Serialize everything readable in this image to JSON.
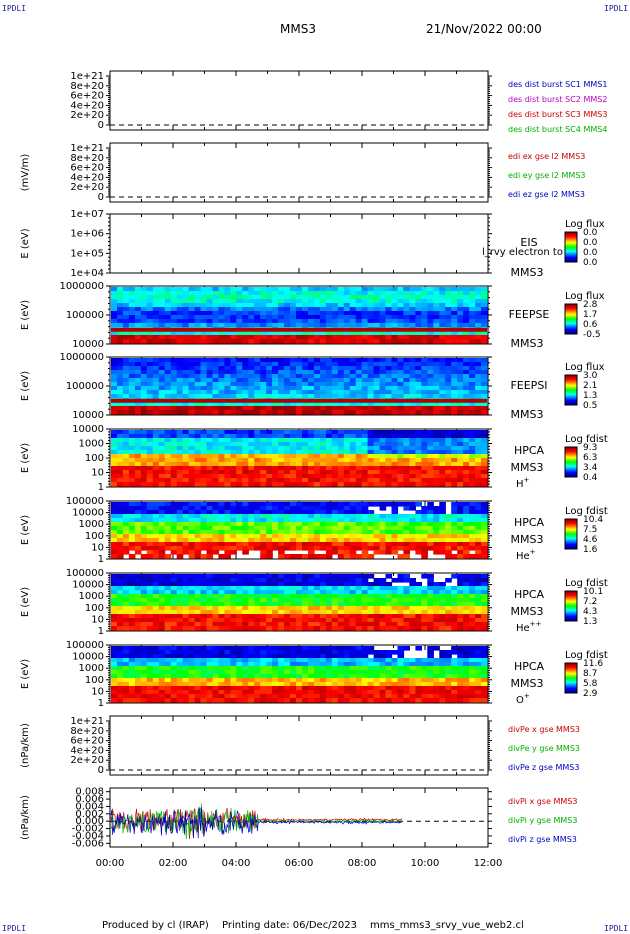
{
  "corner_label": "IPDLI",
  "header": {
    "spacecraft": "MMS3",
    "date": "21/Nov/2022 00:00"
  },
  "footer": {
    "producer": "Produced by cl (IRAP)",
    "printing": "Printing date: 06/Dec/2023",
    "script": "mms_mms3_srvy_vue_web2.cl"
  },
  "colors": {
    "red": "#cc0000",
    "magenta": "#c000c0",
    "green": "#00b000",
    "blue": "#0000c0"
  },
  "chart_data": [
    {
      "type": "line",
      "ylabel": "",
      "yticks": [
        "1e+21",
        "8e+20",
        "6e+20",
        "4e+20",
        "2e+20",
        "0"
      ],
      "legend": [
        {
          "text": "des dist burst SC1 MMS1",
          "color": "blue"
        },
        {
          "text": "des dist burst SC2 MMS2",
          "color": "magenta"
        },
        {
          "text": "des dist burst SC3 MMS3",
          "color": "red"
        },
        {
          "text": "des dist burst SC4 MMS4",
          "color": "green"
        }
      ]
    },
    {
      "type": "line",
      "ylabel": "(mV/m)",
      "yticks": [
        "1e+21",
        "8e+20",
        "6e+20",
        "4e+20",
        "2e+20",
        "0"
      ],
      "legend": [
        {
          "text": "edi ex gse l2 MMS3",
          "color": "red"
        },
        {
          "text": "edi ey gse l2 MMS3",
          "color": "green"
        },
        {
          "text": "edi ez gse l2 MMS3",
          "color": "blue"
        }
      ]
    },
    {
      "type": "heatmap",
      "ylabel": "E (eV)",
      "yticks": [
        "1e+07",
        "1e+06",
        "1e+05",
        "1e+04"
      ],
      "scale": "log",
      "instrument": "EIS",
      "instrument_sub": "MMS3",
      "overlay_text": "l_rvy electron to",
      "cbar_title": "Log flux",
      "cbar_ticks": [
        "0.0",
        "0.0",
        "0.0",
        "0.0"
      ]
    },
    {
      "type": "heatmap",
      "ylabel": "E (eV)",
      "yticks": [
        "1000000",
        "100000",
        "10000"
      ],
      "scale": "log",
      "instrument": "FEEPSE",
      "instrument_sub": "MMS3",
      "cbar_title": "Log flux",
      "cbar_ticks": [
        "2.8",
        "1.7",
        "0.6",
        "-0.5"
      ]
    },
    {
      "type": "heatmap",
      "ylabel": "E (eV)",
      "yticks": [
        "1000000",
        "100000",
        "10000"
      ],
      "scale": "log",
      "instrument": "FEEPSI",
      "instrument_sub": "MMS3",
      "cbar_title": "Log flux",
      "cbar_ticks": [
        "3.0",
        "2.1",
        "1.3",
        "0.5"
      ]
    },
    {
      "type": "heatmap",
      "ylabel": "E (eV)",
      "yticks": [
        "10000",
        "1000",
        "100",
        "10",
        "1"
      ],
      "scale": "log",
      "instrument": "HPCA",
      "instrument_sub": "MMS3",
      "species": "H",
      "species_sup": "+",
      "cbar_title": "Log fdist",
      "cbar_ticks": [
        "9.3",
        "6.3",
        "3.4",
        "0.4"
      ]
    },
    {
      "type": "heatmap",
      "ylabel": "E (eV)",
      "yticks": [
        "100000",
        "10000",
        "1000",
        "100",
        "10",
        "1"
      ],
      "scale": "log",
      "instrument": "HPCA",
      "instrument_sub": "MMS3",
      "species": "He",
      "species_sup": "+",
      "cbar_title": "Log fdist",
      "cbar_ticks": [
        "10.4",
        "7.5",
        "4.6",
        "1.6"
      ]
    },
    {
      "type": "heatmap",
      "ylabel": "E (eV)",
      "yticks": [
        "100000",
        "10000",
        "1000",
        "100",
        "10",
        "1"
      ],
      "scale": "log",
      "instrument": "HPCA",
      "instrument_sub": "MMS3",
      "species": "He",
      "species_sup": "++",
      "cbar_title": "Log fdist",
      "cbar_ticks": [
        "10.1",
        "7.2",
        "4.3",
        "1.3"
      ]
    },
    {
      "type": "heatmap",
      "ylabel": "E (eV)",
      "yticks": [
        "100000",
        "10000",
        "1000",
        "100",
        "10",
        "1"
      ],
      "scale": "log",
      "instrument": "HPCA",
      "instrument_sub": "MMS3",
      "species": "O",
      "species_sup": "+",
      "cbar_title": "Log fdist",
      "cbar_ticks": [
        "11.6",
        "8.7",
        "5.8",
        "2.9"
      ]
    },
    {
      "type": "line",
      "ylabel": "(nPa/km)",
      "yticks": [
        "1e+21",
        "8e+20",
        "6e+20",
        "4e+20",
        "2e+20",
        "0"
      ],
      "legend": [
        {
          "text": "divPe x gse MMS3",
          "color": "red"
        },
        {
          "text": "divPe y gse MMS3",
          "color": "green"
        },
        {
          "text": "divPe z gse MMS3",
          "color": "blue"
        }
      ]
    },
    {
      "type": "line",
      "ylabel": "(nPa/km)",
      "yticks": [
        "0.008",
        "0.006",
        "0.004",
        "0.002",
        "0.000",
        "-0.002",
        "-0.004",
        "-0.006"
      ],
      "ylim": [
        -0.007,
        0.009
      ],
      "legend": [
        {
          "text": "divPi x gse MMS3",
          "color": "red"
        },
        {
          "text": "divPi y gse MMS3",
          "color": "green"
        },
        {
          "text": "divPi z gse MMS3",
          "color": "blue"
        }
      ]
    }
  ],
  "xaxis": {
    "ticks": [
      "00:00",
      "02:00",
      "04:00",
      "06:00",
      "08:00",
      "10:00",
      "12:00"
    ],
    "range_hours": [
      0,
      12
    ]
  }
}
